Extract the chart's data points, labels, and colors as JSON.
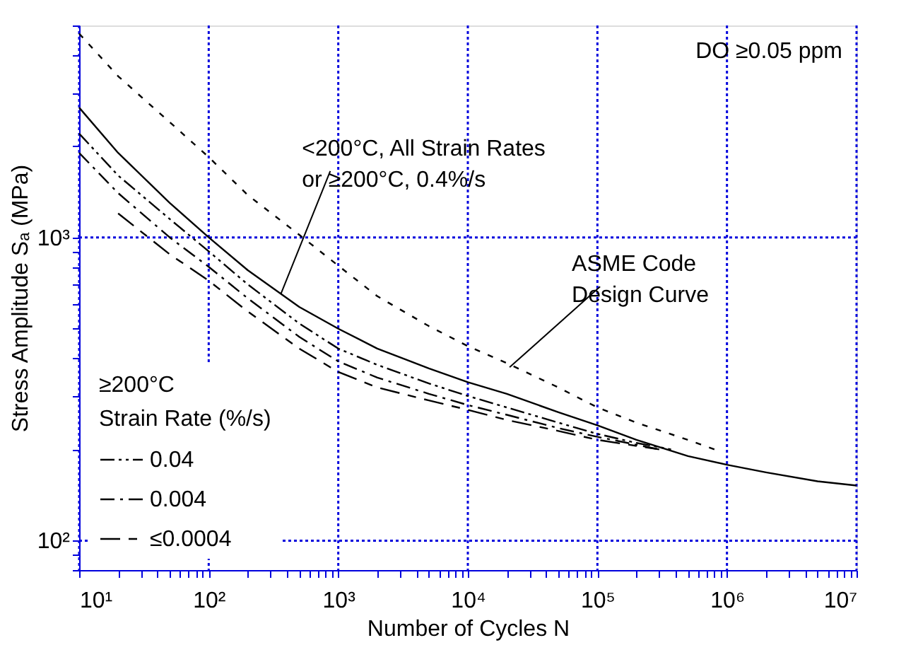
{
  "chart_data": {
    "type": "line",
    "xlabel": "Number of Cycles N",
    "ylabel": "Stress Amplitude Sₐ (MPa)",
    "legend_title": "≥200°C\nStrain Rate (%/s)",
    "log": "xy",
    "grid": true,
    "legend": "bottom left",
    "marker": "none",
    "xlim": [
      10,
      10000000
    ],
    "ylim": [
      80,
      5000
    ],
    "xticks": [
      {
        "value": 10,
        "label": "10¹"
      },
      {
        "value": 20,
        "label": null
      },
      {
        "value": 30,
        "label": null
      },
      {
        "value": 40,
        "label": null
      },
      {
        "value": 50,
        "label": null
      },
      {
        "value": 60,
        "label": null
      },
      {
        "value": 70,
        "label": null
      },
      {
        "value": 80,
        "label": null
      },
      {
        "value": 90,
        "label": null
      },
      {
        "value": 100,
        "label": "10²"
      },
      {
        "value": 200,
        "label": null
      },
      {
        "value": 300,
        "label": null
      },
      {
        "value": 400,
        "label": null
      },
      {
        "value": 500,
        "label": null
      },
      {
        "value": 600,
        "label": null
      },
      {
        "value": 700,
        "label": null
      },
      {
        "value": 800,
        "label": null
      },
      {
        "value": 900,
        "label": null
      },
      {
        "value": 1000,
        "label": "10³"
      },
      {
        "value": 2000,
        "label": null
      },
      {
        "value": 3000,
        "label": null
      },
      {
        "value": 4000,
        "label": null
      },
      {
        "value": 5000,
        "label": null
      },
      {
        "value": 6000,
        "label": null
      },
      {
        "value": 7000,
        "label": null
      },
      {
        "value": 8000,
        "label": null
      },
      {
        "value": 9000,
        "label": null
      },
      {
        "value": 10000,
        "label": "10⁴"
      },
      {
        "value": 20000,
        "label": null
      },
      {
        "value": 30000,
        "label": null
      },
      {
        "value": 40000,
        "label": null
      },
      {
        "value": 50000,
        "label": null
      },
      {
        "value": 60000,
        "label": null
      },
      {
        "value": 70000,
        "label": null
      },
      {
        "value": 80000,
        "label": null
      },
      {
        "value": 90000,
        "label": null
      },
      {
        "value": 100000,
        "label": "10⁵"
      },
      {
        "value": 200000,
        "label": null
      },
      {
        "value": 300000,
        "label": null
      },
      {
        "value": 400000,
        "label": null
      },
      {
        "value": 500000,
        "label": null
      },
      {
        "value": 600000,
        "label": null
      },
      {
        "value": 700000,
        "label": null
      },
      {
        "value": 800000,
        "label": null
      },
      {
        "value": 900000,
        "label": null
      },
      {
        "value": 1000000,
        "label": "10⁶"
      },
      {
        "value": 2000000,
        "label": null
      },
      {
        "value": 3000000,
        "label": null
      },
      {
        "value": 4000000,
        "label": null
      },
      {
        "value": 5000000,
        "label": null
      },
      {
        "value": 6000000,
        "label": null
      },
      {
        "value": 7000000,
        "label": null
      },
      {
        "value": 8000000,
        "label": null
      },
      {
        "value": 9000000,
        "label": null
      },
      {
        "value": 10000000,
        "label": "10⁷"
      }
    ],
    "yticks": [
      {
        "value": 80,
        "label": null
      },
      {
        "value": 90,
        "label": null
      },
      {
        "value": 100,
        "label": "10²"
      },
      {
        "value": 200,
        "label": null
      },
      {
        "value": 300,
        "label": null
      },
      {
        "value": 400,
        "label": null
      },
      {
        "value": 500,
        "label": null
      },
      {
        "value": 600,
        "label": null
      },
      {
        "value": 700,
        "label": null
      },
      {
        "value": 800,
        "label": null
      },
      {
        "value": 900,
        "label": null
      },
      {
        "value": 1000,
        "label": "10³"
      },
      {
        "value": 2000,
        "label": null
      },
      {
        "value": 3000,
        "label": null
      },
      {
        "value": 4000,
        "label": null
      },
      {
        "value": 5000,
        "label": null
      }
    ],
    "series": [
      {
        "color": "#000000",
        "line_style": "dashed",
        "x": [
          10,
          20,
          50,
          100,
          200,
          500,
          1000,
          2000,
          5000,
          10000,
          20000,
          50000,
          100000,
          200000,
          500000,
          800000
        ],
        "values": [
          4700,
          3400,
          2400,
          1840,
          1380,
          1020,
          807,
          640,
          510,
          438,
          385,
          320,
          275,
          245,
          215,
          200
        ]
      },
      {
        "color": "#000000",
        "line_style": "solid",
        "x": [
          10,
          20,
          50,
          100,
          200,
          500,
          1000,
          2000,
          5000,
          10000,
          20000,
          50000,
          100000,
          200000,
          500000,
          1000000,
          2000000,
          5000000,
          10000000
        ],
        "values": [
          2680,
          1900,
          1300,
          1000,
          780,
          590,
          500,
          430,
          370,
          333,
          305,
          265,
          240,
          215,
          190,
          178,
          168,
          157,
          152
        ]
      },
      {
        "name": "0.04",
        "color": "#000000",
        "line_style": "dotted",
        "x": [
          10,
          20,
          50,
          100,
          200,
          500,
          1000,
          2000,
          5000,
          10000,
          20000,
          50000,
          100000,
          200000,
          370000
        ],
        "values": [
          2200,
          1600,
          1150,
          900,
          700,
          520,
          430,
          380,
          330,
          300,
          275,
          245,
          225,
          210,
          200
        ]
      },
      {
        "name": "0.004",
        "color": "#000000",
        "line_style": "dashed",
        "x": [
          10,
          20,
          50,
          100,
          200,
          500,
          1000,
          2000,
          5000,
          10000,
          20000,
          50000,
          100000,
          300000
        ],
        "values": [
          1900,
          1400,
          1000,
          800,
          630,
          470,
          390,
          345,
          305,
          280,
          260,
          235,
          220,
          200
        ]
      },
      {
        "name": "≤0.0004",
        "color": "#000000",
        "line_style": "dashed",
        "x": [
          20,
          50,
          100,
          200,
          500,
          1000,
          2000,
          5000,
          10000,
          20000,
          50000,
          100000,
          300000
        ],
        "values": [
          1200,
          880,
          720,
          570,
          430,
          360,
          320,
          290,
          270,
          250,
          230,
          215,
          200
        ]
      }
    ],
    "annotations": [
      "DO ≥0.05 ppm",
      {
        "text": "<200°C, All Strain Rates\nor ≥200°C, 0.4%/s",
        "x": 360,
        "y": 650
      },
      {
        "text": "ASME Code\nDesign Curve",
        "x": 21000,
        "y": 373
      }
    ]
  }
}
